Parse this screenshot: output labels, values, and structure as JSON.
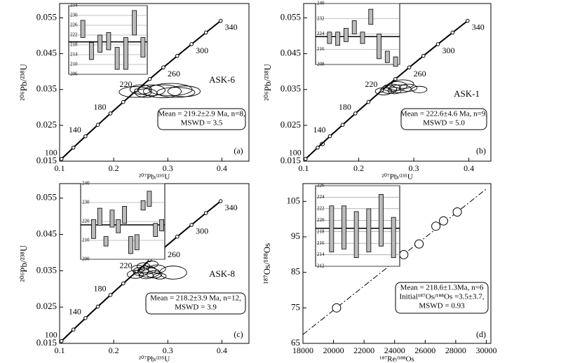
{
  "chart_data": [
    {
      "type": "concordia",
      "panel_label": "(a)",
      "sample": "ASK-6",
      "xlabel": "²⁰⁷Pb/²³⁵U",
      "ylabel": "²⁰⁶Pb/²³⁸U",
      "xlim": [
        0.1,
        0.45
      ],
      "ylim": [
        0.015,
        0.059
      ],
      "xticks": [
        0.1,
        0.2,
        0.3,
        0.4
      ],
      "yticks": [
        0.015,
        0.025,
        0.035,
        0.045,
        0.055
      ],
      "concordia": {
        "ages": [
          100,
          null,
          140,
          null,
          180,
          null,
          220,
          null,
          260,
          null,
          300,
          null,
          340
        ],
        "x": [
          0.1035,
          0.1255,
          0.1478,
          0.1707,
          0.194,
          0.2177,
          0.2419,
          0.2666,
          0.2918,
          0.3175,
          0.3438,
          0.3704,
          0.3977
        ],
        "y": [
          0.01563,
          0.01879,
          0.02196,
          0.02513,
          0.02832,
          0.03151,
          0.03472,
          0.03793,
          0.04116,
          0.04439,
          0.04764,
          0.05089,
          0.05416
        ]
      },
      "ellipses": {
        "x": [
          0.24,
          0.25,
          0.26,
          0.27,
          0.29,
          0.305,
          0.315,
          0.33
        ],
        "y": [
          0.0343,
          0.035,
          0.034,
          0.0348,
          0.0345,
          0.035,
          0.0342,
          0.0345
        ],
        "rx": [
          0.03,
          0.02,
          0.02,
          0.025,
          0.035,
          0.04,
          0.035,
          0.03
        ],
        "ry": [
          0.0015,
          0.0013,
          0.0012,
          0.0015,
          0.0018,
          0.0017,
          0.0014,
          0.0015
        ]
      },
      "inset": {
        "ylim": [
          206,
          234
        ],
        "yticks": [
          206,
          210,
          214,
          218,
          222,
          226,
          230,
          234
        ],
        "mean": 219.2,
        "low": [
          221,
          212,
          215,
          216,
          208,
          208,
          222,
          213
        ],
        "high": [
          228,
          219,
          222,
          223,
          217,
          221,
          232,
          221
        ]
      },
      "annotation": [
        "Mean = 219.2±2.9 Ma, n=8,",
        "MSWD = 3.5"
      ]
    },
    {
      "type": "concordia",
      "panel_label": "(b)",
      "sample": "ASK-1",
      "xlabel": "²⁰⁷Pb/²³⁵U",
      "ylabel": "²⁰⁶Pb/²³⁸U",
      "xlim": [
        0.1,
        0.44
      ],
      "ylim": [
        0.015,
        0.059
      ],
      "xticks": [
        0.1,
        0.2,
        0.3,
        0.4
      ],
      "yticks": [
        0.015,
        0.025,
        0.035,
        0.045,
        0.055
      ],
      "concordia": {
        "ages": [
          100,
          null,
          140,
          null,
          180,
          null,
          220,
          null,
          260,
          null,
          300,
          null,
          340
        ],
        "x": [
          0.1035,
          0.1255,
          0.1478,
          0.1707,
          0.194,
          0.2177,
          0.2419,
          0.2666,
          0.2918,
          0.3175,
          0.3438,
          0.3704,
          0.3977
        ],
        "y": [
          0.01563,
          0.01879,
          0.02196,
          0.02513,
          0.02832,
          0.03151,
          0.03472,
          0.03793,
          0.04116,
          0.04439,
          0.04764,
          0.05089,
          0.05416
        ]
      },
      "ellipses": {
        "x": [
          0.134,
          0.245,
          0.255,
          0.26,
          0.265,
          0.27,
          0.275,
          0.28,
          0.29,
          0.31
        ],
        "y": [
          0.0198,
          0.0345,
          0.035,
          0.0355,
          0.0347,
          0.036,
          0.0352,
          0.0365,
          0.0355,
          0.035
        ],
        "rx": [
          0.004,
          0.015,
          0.014,
          0.016,
          0.012,
          0.018,
          0.02,
          0.02,
          0.016,
          0.014
        ],
        "ry": [
          0.0005,
          0.001,
          0.0011,
          0.001,
          0.0009,
          0.0012,
          0.0011,
          0.0012,
          0.001,
          0.0009
        ]
      },
      "inset": {
        "ylim": [
          208,
          240
        ],
        "yticks": [
          208,
          216,
          224,
          232,
          240
        ],
        "mean": 222.6,
        "low": [
          219,
          218,
          220,
          224,
          219,
          229,
          211,
          209,
          207
        ],
        "high": [
          225,
          225,
          227,
          231,
          225,
          237,
          224,
          215,
          212
        ]
      },
      "annotation": [
        "Mean = 222.6±4.6 Ma, n=9,",
        "MSWD = 5.0"
      ]
    },
    {
      "type": "concordia",
      "panel_label": "(c)",
      "sample": "ASK-8",
      "xlabel": "²⁰⁷Pb/²³⁵U",
      "ylabel": "²⁰⁶Pb/²³⁸U",
      "xlim": [
        0.1,
        0.45
      ],
      "ylim": [
        0.015,
        0.059
      ],
      "xticks": [
        0.1,
        0.2,
        0.3,
        0.4
      ],
      "yticks": [
        0.015,
        0.025,
        0.035,
        0.045,
        0.055
      ],
      "concordia": {
        "ages": [
          100,
          null,
          140,
          null,
          180,
          null,
          220,
          null,
          260,
          null,
          300,
          null,
          340
        ],
        "x": [
          0.1035,
          0.1255,
          0.1478,
          0.1707,
          0.194,
          0.2177,
          0.2419,
          0.2666,
          0.2918,
          0.3175,
          0.3438,
          0.3704,
          0.3977
        ],
        "y": [
          0.01563,
          0.01879,
          0.02196,
          0.02513,
          0.02832,
          0.03151,
          0.03472,
          0.03793,
          0.04116,
          0.04439,
          0.04764,
          0.05089,
          0.05416
        ]
      },
      "ellipses": {
        "x": [
          0.24,
          0.245,
          0.25,
          0.255,
          0.26,
          0.262,
          0.265,
          0.27,
          0.275,
          0.28,
          0.285,
          0.31
        ],
        "y": [
          0.034,
          0.0355,
          0.0348,
          0.0362,
          0.0337,
          0.0352,
          0.0345,
          0.0368,
          0.034,
          0.0355,
          0.0335,
          0.0345
        ],
        "rx": [
          0.015,
          0.012,
          0.014,
          0.012,
          0.013,
          0.016,
          0.02,
          0.012,
          0.014,
          0.016,
          0.012,
          0.025
        ],
        "ry": [
          0.0011,
          0.001,
          0.0012,
          0.001,
          0.0009,
          0.0011,
          0.0013,
          0.0009,
          0.001,
          0.0011,
          0.0008,
          0.0018
        ]
      },
      "inset": {
        "ylim": [
          200,
          240
        ],
        "yticks": [
          200,
          210,
          220,
          230,
          240
        ],
        "mean": 218.2,
        "low": [
          211,
          218,
          207,
          217,
          214,
          219,
          203,
          205,
          226,
          228,
          212,
          215
        ],
        "high": [
          221,
          227,
          212,
          226,
          221,
          228,
          212,
          213,
          231,
          236,
          219,
          221
        ]
      },
      "annotation": [
        "Mean = 218.2±3.9 Ma, n=12,",
        "MSWD = 3.9"
      ]
    },
    {
      "type": "isochron",
      "panel_label": "(d)",
      "xlabel": "¹⁸⁷Re/¹⁸⁸Os",
      "ylabel": "¹⁸⁷Os/¹⁸⁸Os",
      "xlim": [
        18000,
        30300
      ],
      "ylim": [
        65,
        110
      ],
      "xticks": [
        18000,
        20000,
        22000,
        24000,
        26000,
        28000,
        30000
      ],
      "yticks": [
        65,
        75,
        85,
        95,
        105
      ],
      "isochron": {
        "x": [
          18000,
          30000
        ],
        "y": [
          67.5,
          108.5
        ]
      },
      "points": {
        "x": [
          20200,
          24600,
          25600,
          26700,
          27200,
          28100
        ],
        "y": [
          75,
          90,
          93,
          98,
          99.5,
          102
        ]
      },
      "inset": {
        "ylim": [
          212,
          226
        ],
        "yticks": [
          212,
          214,
          216,
          218,
          220,
          222,
          224,
          226
        ],
        "mean": 218.6,
        "low": [
          214.5,
          215,
          213.5,
          214.5,
          215.5,
          213.5
        ],
        "high": [
          222.5,
          222.5,
          221.5,
          222,
          224.5,
          220.5
        ]
      },
      "annotation": [
        "Mean = 218.6±1.3Ma, n=6",
        "Initial¹⁸⁷Os/¹⁸⁸Os =3.5±3.7,",
        "MSWD = 0.93"
      ]
    }
  ]
}
